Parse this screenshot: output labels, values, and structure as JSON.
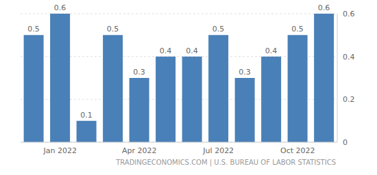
{
  "chart_data": {
    "type": "bar",
    "categories": [
      null,
      "Jan 2022",
      null,
      null,
      "Apr 2022",
      null,
      null,
      "Jul 2022",
      null,
      null,
      "Oct 2022",
      null
    ],
    "values": [
      0.5,
      0.6,
      0.1,
      0.5,
      0.3,
      0.4,
      0.4,
      0.5,
      0.3,
      0.4,
      0.5,
      0.6
    ],
    "color": "#4a80b8",
    "ylim": [
      0,
      0.6
    ],
    "yticks": [
      0,
      0.2,
      0.4,
      0.6
    ],
    "grid": true,
    "data_labels": true,
    "source": "TRADINGECONOMICS.COM | U.S. BUREAU OF LABOR STATISTICS"
  }
}
